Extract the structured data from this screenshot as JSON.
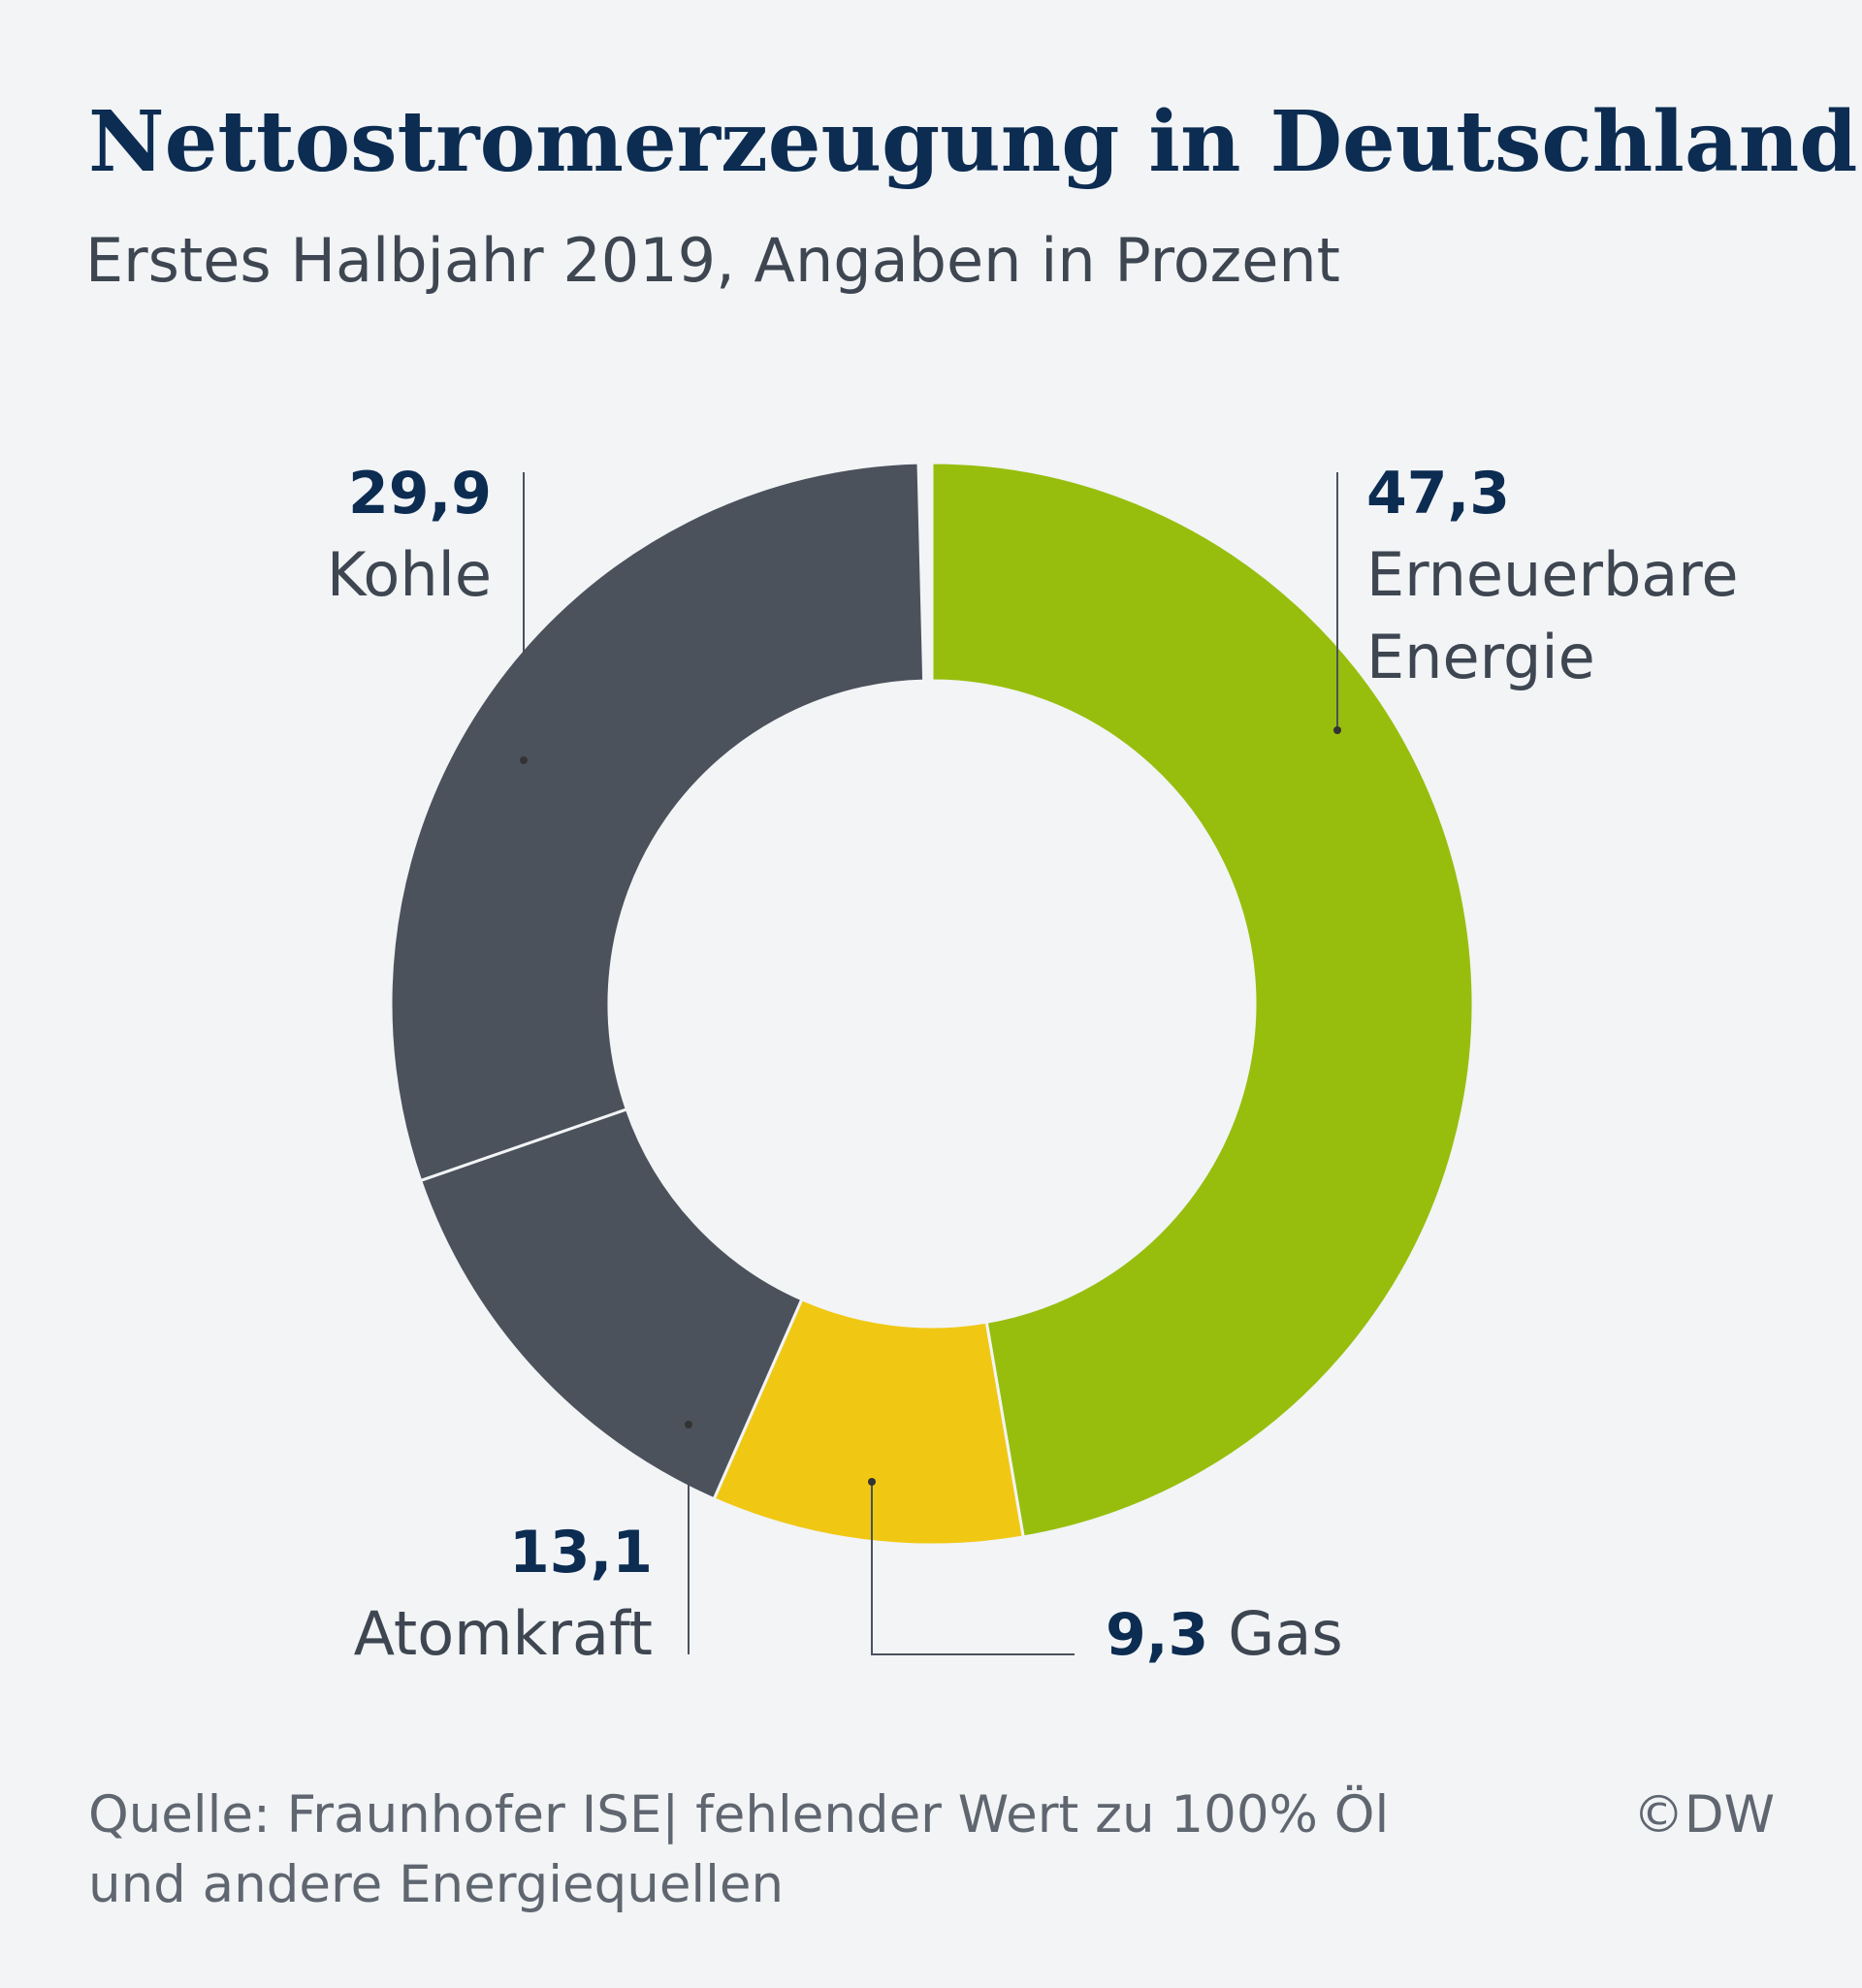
{
  "chart_data": {
    "type": "pie",
    "donut": true,
    "title": "Nettostromerzeugung in Deutschland",
    "subtitle": "Erstes Halbjahr 2019, Angaben in Prozent",
    "slices": [
      {
        "label": [
          "Erneuerbare",
          "Energie"
        ],
        "value": 47.3,
        "value_text": "47,3",
        "color": "#97be0d"
      },
      {
        "label": [
          "Gas"
        ],
        "value": 9.3,
        "value_text": "9,3",
        "color": "#f0c814"
      },
      {
        "label": [
          "Atomkraft"
        ],
        "value": 13.1,
        "value_text": "13,1",
        "color": "#4b525c"
      },
      {
        "label": [
          "Kohle"
        ],
        "value": 29.9,
        "value_text": "29,9",
        "color": "#4b525c"
      }
    ],
    "source": [
      "Quelle: Fraunhofer ISE| fehlender Wert zu 100% Öl",
      "und andere Energiequellen"
    ],
    "credit": "©DW"
  },
  "colors": {
    "background": "#f2f4f6",
    "title": "#0c2c52"
  }
}
